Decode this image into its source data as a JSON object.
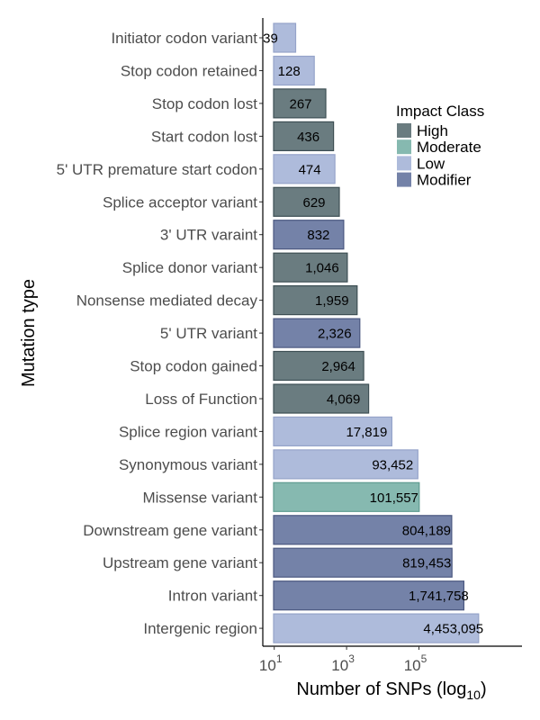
{
  "chart_data": {
    "type": "bar",
    "orientation": "horizontal",
    "xlabel": "Number of SNPs (log",
    "xlabel_subscript": "10",
    "xlabel_suffix": ")",
    "ylabel": "Mutation type",
    "x_scale": "log10",
    "xlim": [
      1,
      10000000
    ],
    "x_ticks": [
      {
        "value": 10,
        "base": "10",
        "exp": "1"
      },
      {
        "value": 1000,
        "base": "10",
        "exp": "3"
      },
      {
        "value": 100000,
        "base": "10",
        "exp": "5"
      }
    ],
    "grid": false,
    "legend": {
      "title": "Impact Class",
      "placement": "right",
      "entries": [
        {
          "label": "High",
          "color": "#6a7c80"
        },
        {
          "label": "Moderate",
          "color": "#86b9b0"
        },
        {
          "label": "Low",
          "color": "#aebbdb"
        },
        {
          "label": "Modifier",
          "color": "#7482a8"
        }
      ]
    },
    "bars": [
      {
        "category": "Initiator codon variant",
        "value": 39,
        "label": "39",
        "impact": "Low"
      },
      {
        "category": "Stop codon retained",
        "value": 128,
        "label": "128",
        "impact": "Low"
      },
      {
        "category": "Stop codon lost",
        "value": 267,
        "label": "267",
        "impact": "High"
      },
      {
        "category": "Start codon lost",
        "value": 436,
        "label": "436",
        "impact": "High"
      },
      {
        "category": "5' UTR premature start codon",
        "value": 474,
        "label": "474",
        "impact": "Low"
      },
      {
        "category": "Splice acceptor variant",
        "value": 629,
        "label": "629",
        "impact": "High"
      },
      {
        "category": "3' UTR varaint",
        "value": 832,
        "label": "832",
        "impact": "Modifier"
      },
      {
        "category": "Splice donor variant",
        "value": 1046,
        "label": "1,046",
        "impact": "High"
      },
      {
        "category": "Nonsense mediated decay",
        "value": 1959,
        "label": "1,959",
        "impact": "High"
      },
      {
        "category": "5' UTR variant",
        "value": 2326,
        "label": "2,326",
        "impact": "Modifier"
      },
      {
        "category": "Stop codon gained",
        "value": 2964,
        "label": "2,964",
        "impact": "High"
      },
      {
        "category": "Loss of Function",
        "value": 4069,
        "label": "4,069",
        "impact": "High"
      },
      {
        "category": "Splice region variant",
        "value": 17819,
        "label": "17,819",
        "impact": "Low"
      },
      {
        "category": "Synonymous variant",
        "value": 93452,
        "label": "93,452",
        "impact": "Low"
      },
      {
        "category": "Missense variant",
        "value": 101557,
        "label": "101,557",
        "impact": "Moderate"
      },
      {
        "category": "Downstream gene variant",
        "value": 804189,
        "label": "804,189",
        "impact": "Modifier"
      },
      {
        "category": "Upstream gene variant",
        "value": 819453,
        "label": "819,453",
        "impact": "Modifier"
      },
      {
        "category": "Intron variant",
        "value": 1741758,
        "label": "1,741,758",
        "impact": "Modifier"
      },
      {
        "category": "Intergenic region",
        "value": 4453095,
        "label": "4,453,095",
        "impact": "Low"
      }
    ]
  }
}
